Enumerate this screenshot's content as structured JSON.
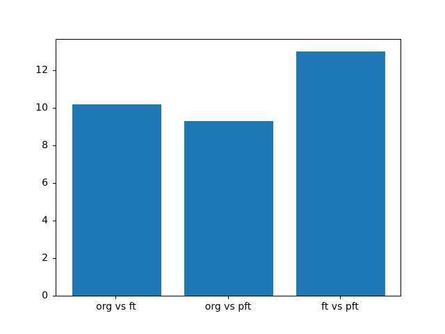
{
  "chart_data": {
    "type": "bar",
    "title": "",
    "xlabel": "",
    "ylabel": "",
    "categories": [
      "org vs ft",
      "org vs pft",
      "ft vs pft"
    ],
    "values": [
      10.2,
      9.3,
      13.0
    ],
    "yticks": [
      0,
      2,
      4,
      6,
      8,
      10,
      12
    ],
    "ylim": [
      0,
      13.63
    ],
    "bar_color": "#1f77b4",
    "spine_color": "#000000",
    "text_color": "#000000",
    "background_color": "#ffffff",
    "grid": false,
    "legend": null,
    "bar_width_fraction": 0.8
  }
}
